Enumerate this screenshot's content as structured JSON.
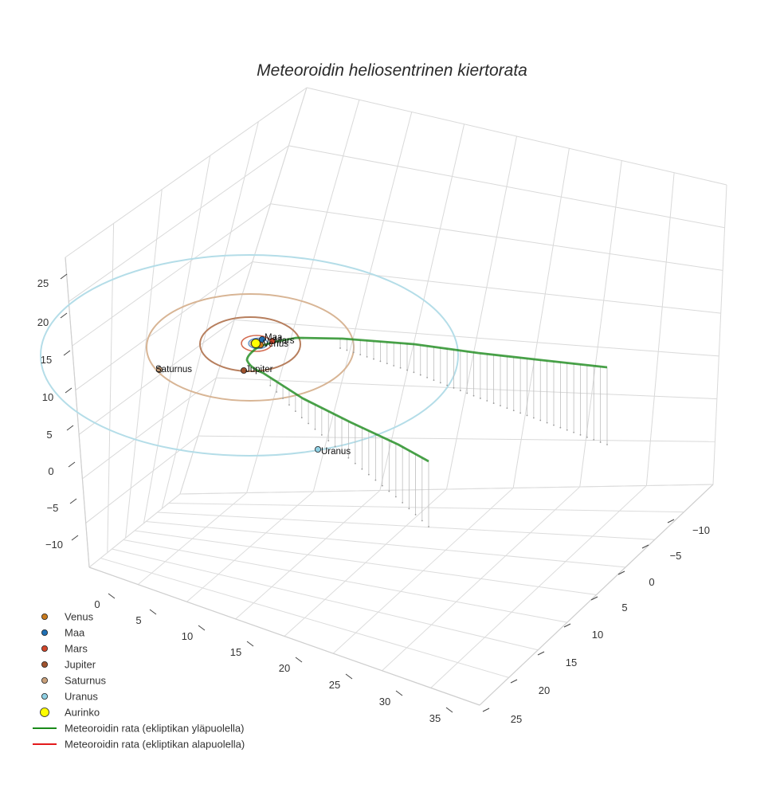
{
  "chart_data": {
    "type": "scatter3d",
    "title": "Meteoroidin heliosentrinen kiertorata",
    "axes": {
      "x": {
        "ticks": [
          "0",
          "5",
          "10",
          "15",
          "20",
          "25",
          "30",
          "35"
        ]
      },
      "y": {
        "ticks": [
          "−10",
          "−5",
          "0",
          "5",
          "10",
          "15",
          "20",
          "25"
        ]
      },
      "z": {
        "ticks": [
          "25",
          "20",
          "15",
          "10",
          "5",
          "0",
          "−5",
          "−10"
        ]
      }
    },
    "grid": true,
    "legend_position": "bottom-left",
    "planets": [
      {
        "name": "Venus",
        "color": "#c87a1e",
        "orbit_radius_au": 0.72
      },
      {
        "name": "Maa",
        "color": "#1f6fb4",
        "orbit_radius_au": 1.0
      },
      {
        "name": "Mars",
        "color": "#d1462a",
        "orbit_radius_au": 1.52
      },
      {
        "name": "Jupiter",
        "color": "#a0522d",
        "orbit_radius_au": 5.2
      },
      {
        "name": "Saturnus",
        "color": "#c9a07a",
        "orbit_radius_au": 9.54
      },
      {
        "name": "Uranus",
        "color": "#8fd0e4",
        "orbit_radius_au": 19.2
      },
      {
        "name": "Aurinko",
        "color": "#ffff00",
        "orbit_radius_au": 0
      }
    ],
    "series": [
      {
        "name": "Meteoroidin rata (ekliptikan yläpuolella)",
        "color": "#1a8a1a"
      },
      {
        "name": "Meteoroidin rata (ekliptikan alapuolella)",
        "color": "#e31a1c"
      }
    ]
  }
}
